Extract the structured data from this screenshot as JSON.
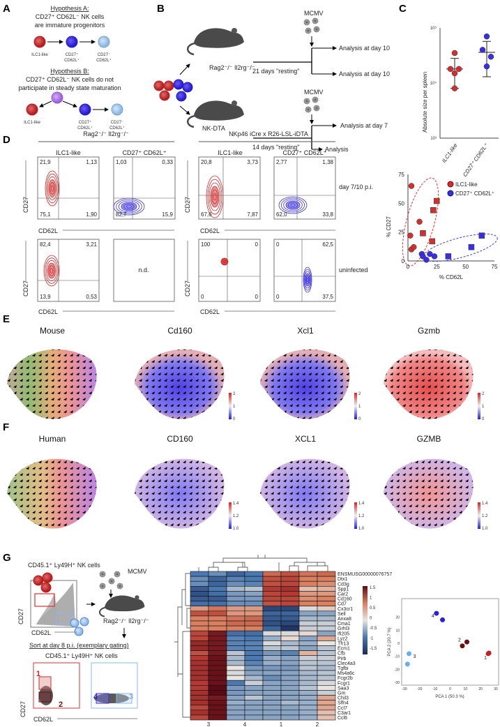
{
  "panels": {
    "a": "A",
    "b": "B",
    "c": "C",
    "d": "D",
    "e": "E",
    "f": "F",
    "g": "G"
  },
  "panel_a": {
    "hyp_a_title": "Hypothesis A:",
    "hyp_a_line1": "CD27⁺ CD62L⁻ NK cells",
    "hyp_a_line2": "are immature progenitors",
    "hyp_b_title": "Hypothesis B:",
    "hyp_b_line1": "CD27⁺ CD62L⁻ NK cells do not",
    "hyp_b_line2": "participate in steady state maturation",
    "cell_ilc1": "ILC1-like",
    "cell_cd27_l1": "CD27⁺",
    "cell_cd27_l2": "CD62L⁺",
    "cell_cd27neg_l1": "CD27⁻",
    "cell_cd27neg_l2": "CD62L⁺"
  },
  "panel_b": {
    "mcmv": "MCMV",
    "mouse1": "Rag2⁻/⁻ Il2rg⁻/⁻",
    "mouse2": "NK-DTA",
    "rest1": "21 days \"resting\"",
    "rest2": "14 days \"resting\"",
    "out1": "Analysis at day 10",
    "out2": "Analysis at day 10",
    "out3": "Analysis at day 7",
    "out4": "Analysis"
  },
  "panel_d": {
    "group1": "Rag2⁻/⁻ Il2rg⁻/⁻",
    "group2": "NKp46 iCre x R26-LSL-iDTA",
    "col_ilc1": "ILC1-like",
    "col_cd27": "CD27⁺ CD62L⁺",
    "row1": "day 7/10 p.i.",
    "row2": "uninfected",
    "ylabel": "CD27",
    "xlabel": "CD62L",
    "nd": "n.d.",
    "quadrants": [
      [
        "21,9",
        "1,13",
        "75,1",
        "1,90"
      ],
      [
        "1,03",
        "0,33",
        "82,7",
        "15,9"
      ],
      [
        "20,8",
        "3,73",
        "67,6",
        "7,87"
      ],
      [
        "2,77",
        "1,38",
        "62,0",
        "33,8"
      ],
      [
        "82,4",
        "3,21",
        "13,9",
        "0,53"
      ],
      [
        "100",
        "0",
        "0",
        "0"
      ],
      [
        "0",
        "62,5",
        "0",
        "37,5"
      ]
    ]
  },
  "panel_e": {
    "titles": [
      "Mouse",
      "Cd160",
      "Xcl1",
      "Gzmb"
    ],
    "scale": [
      "2",
      "1",
      "0"
    ]
  },
  "panel_f": {
    "titles": [
      "Human",
      "CD160",
      "XCL1",
      "GZMB"
    ],
    "scale": [
      "1.4",
      "1.2",
      "1.0"
    ]
  },
  "panel_g": {
    "title": "CD45.1⁺ Ly49H⁺ NK cells",
    "mcmv": "MCMV",
    "mouse": "Rag2⁻/⁻ Il2rg⁻/⁻",
    "sort": "Sort at day 8 p.i. (exemplary gating)",
    "title2": "CD45.1⁺ Ly49H⁺ NK cells",
    "ylabel": "CD27",
    "xlabel": "CD62L",
    "gates": [
      "1",
      "2",
      "4",
      "3"
    ]
  },
  "colors": {
    "red": "#d03030",
    "blue": "#3a2ee0",
    "lightblue": "#a8c8f0",
    "purple": "#b57be8",
    "darkred": "#7a1010"
  },
  "chart_data": [
    {
      "type": "scatter",
      "id": "c",
      "ylabel": "Absolute size per spleen",
      "yscale": "log",
      "ylim": [
        1000,
        100000
      ],
      "yticks": [
        "10³",
        "10⁴",
        "10⁵"
      ],
      "categories": [
        "ILC1-like",
        "CD27⁺ CD62L⁺"
      ],
      "series": [
        {
          "name": "ILC1-like",
          "values": [
            35000,
            18000,
            18000,
            15000,
            8000
          ],
          "mean": 18000,
          "sd": [
            8000,
            28000
          ]
        },
        {
          "name": "CD27⁺ CD62L⁺",
          "values": [
            70000,
            40000,
            30000,
            20000
          ],
          "mean": 36000,
          "sd": [
            13000,
            57000
          ]
        }
      ]
    },
    {
      "type": "scatter",
      "id": "d",
      "xlabel": "% CD62L",
      "ylabel": "% CD27",
      "xlim": [
        0,
        75
      ],
      "ylim": [
        0,
        75
      ],
      "xticks": [
        "0",
        "25",
        "50",
        "75"
      ],
      "yticks": [
        "0",
        "25",
        "50",
        "75"
      ],
      "legend": [
        "ILC1-like",
        "CD27⁺ CD62L⁺"
      ],
      "legend_position": "top-right",
      "series": [
        {
          "name": "ILC1-like",
          "marker": "circle",
          "points": [
            [
              2,
              22
            ],
            [
              3,
              10
            ],
            [
              5,
              12
            ],
            [
              3,
              65
            ],
            [
              10,
              34
            ]
          ]
        },
        {
          "name": "ILC1-like",
          "marker": "square",
          "points": [
            [
              13,
              24
            ],
            [
              22,
              44
            ],
            [
              25,
              52
            ],
            [
              21,
              17
            ]
          ]
        },
        {
          "name": "CD27⁺ CD62L⁺",
          "marker": "circle",
          "points": [
            [
              12,
              6
            ],
            [
              13,
              4
            ],
            [
              16,
              1
            ],
            [
              19,
              6
            ],
            [
              23,
              4
            ]
          ]
        },
        {
          "name": "CD27⁺ CD62L⁺",
          "marker": "square",
          "points": [
            [
              35,
              4
            ],
            [
              55,
              12
            ],
            [
              64,
              22
            ]
          ]
        }
      ]
    },
    {
      "type": "heatmap",
      "id": "g-heatmap",
      "columns": [
        "3",
        "4",
        "1",
        "2"
      ],
      "colorbar_ticks": [
        "1.5",
        "1",
        "0.5",
        "0",
        "-0.5",
        "-1",
        "-1.5"
      ],
      "rows": [
        "ENSMUSG00000076757",
        "Dtx1",
        "Cd3g",
        "Spp1",
        "Car2",
        "Cd160",
        "Cd7",
        "Cx3cr1",
        "Sell",
        "Anxa8",
        "Cma1",
        "Grhl3",
        "Ifi205",
        "Lyz2",
        "Tfr13",
        "Ecm1",
        "Cfb",
        "Pirb",
        "Clec4a3",
        "Tgfbi",
        "Ms4a6c",
        "Fcgr2b",
        "Fcgr1",
        "Saa3",
        "Gm",
        "Chil3",
        "Slfn4",
        "Ccl7",
        "C3ar1",
        "Ccl6"
      ],
      "values": [
        [
          -1,
          -0.8,
          -1.2,
          -1,
          1,
          1.2,
          0.9,
          1
        ],
        [
          -0.8,
          -1.2,
          -0.9,
          -1,
          1.2,
          1.3,
          0.8,
          0.8
        ],
        [
          -0.8,
          -1.2,
          -0.8,
          -0.9,
          1.2,
          1.3,
          0.8,
          0.7
        ],
        [
          -1.3,
          -1,
          -0.4,
          -0.3,
          1.4,
          1.5,
          0.3,
          0.4
        ],
        [
          -1.4,
          -1.1,
          -0.7,
          -0.6,
          1.3,
          1.4,
          0.6,
          0.6
        ],
        [
          -1.3,
          -1.3,
          -0.7,
          -0.7,
          1.3,
          1.3,
          0.7,
          0.8
        ],
        [
          -1.1,
          -1.1,
          -0.8,
          -0.8,
          1.2,
          1.3,
          0.8,
          0.8
        ],
        [
          0.6,
          0.9,
          0.6,
          0.6,
          -1.5,
          -1.5,
          -0.1,
          0.2
        ],
        [
          1.2,
          1.2,
          0.6,
          0.6,
          -1.2,
          -1.2,
          -0.6,
          -0.6
        ],
        [
          0.8,
          0.8,
          0.9,
          1,
          -1.3,
          -1.3,
          -0.4,
          -0.4
        ],
        [
          0.8,
          0.8,
          1,
          1,
          -1.4,
          -1.5,
          -0.2,
          -0.2
        ],
        [
          0.8,
          0.8,
          0.8,
          0.8,
          -1.2,
          -1.7,
          -0.2,
          -0.2
        ],
        [
          1.3,
          1.8,
          -1.1,
          -1.1,
          -0.1,
          -0.1,
          0.1,
          -0.6
        ],
        [
          1.3,
          1.8,
          -0.9,
          -1,
          -0.5,
          0.1,
          -0.6,
          0.5
        ],
        [
          1.6,
          1.8,
          -0.9,
          -0.9,
          -0.1,
          -0.4,
          -0.5,
          0
        ],
        [
          1.6,
          1.8,
          -0.9,
          -0.9,
          -0.3,
          -0.3,
          -0.6,
          -0.3
        ],
        [
          1.2,
          1.8,
          -0.3,
          -1,
          -0.7,
          -0.9,
          0.4,
          -0.3
        ],
        [
          1.4,
          1.9,
          -0.4,
          -1,
          -0.5,
          -0.6,
          -0.2,
          -0.2
        ],
        [
          1.5,
          1.9,
          -0.4,
          -0.9,
          -0.5,
          -0.6,
          -0.3,
          -0.3
        ],
        [
          1.5,
          1.9,
          0,
          -0.7,
          -0.7,
          -0.7,
          -0.3,
          -0.4
        ],
        [
          1.5,
          1.9,
          -0.1,
          -0.6,
          -0.6,
          -0.6,
          -0.4,
          -0.3
        ],
        [
          1.5,
          1.9,
          0,
          -0.4,
          -0.8,
          -0.6,
          -0.4,
          -0.3
        ],
        [
          1.4,
          1.9,
          -1,
          -0.2,
          -0.6,
          -0.6,
          -0.4,
          -0.1
        ],
        [
          1.4,
          2,
          -0.7,
          -0.6,
          -0.6,
          -0.6,
          -0.3,
          0
        ],
        [
          1.5,
          2,
          -0.7,
          -0.6,
          -0.6,
          -0.6,
          -0.5,
          -0.2
        ],
        [
          1.5,
          1.8,
          -0.6,
          -0.3,
          -0.6,
          -0.6,
          -0.5,
          0.5
        ],
        [
          1.5,
          1.9,
          -0.5,
          -0.6,
          -0.6,
          -0.4,
          -0.5,
          0.5
        ],
        [
          1.3,
          1.9,
          -0.6,
          -0.6,
          -0.6,
          -0.6,
          -0.5,
          0.5
        ],
        [
          1.5,
          1.9,
          -0.6,
          -0.6,
          -0.6,
          -0.6,
          -0.5,
          0.3
        ],
        [
          1.3,
          1.9,
          -0.6,
          -0.6,
          -0.6,
          -0.6,
          -0.5,
          0.3
        ]
      ]
    },
    {
      "type": "scatter",
      "id": "g-pca",
      "xlabel": "PCA 1 (50.3 %)",
      "ylabel": "PCA 2 (20.7 %)",
      "xlim": [
        -30,
        30
      ],
      "ylim": [
        -30,
        30
      ],
      "xticks": [
        "-30",
        "-20",
        "-10",
        "0",
        "10",
        "20",
        "30"
      ],
      "yticks": [
        "20",
        "10",
        "0",
        "-10",
        "-20",
        "-30"
      ],
      "series": [
        {
          "name": "1",
          "color": "#c02020",
          "points": [
            [
              25,
              -8
            ],
            [
              25.5,
              -7.5
            ]
          ]
        },
        {
          "name": "2",
          "color": "#6a1010",
          "points": [
            [
              8,
              -2
            ],
            [
              11,
              1
            ]
          ]
        },
        {
          "name": "3",
          "color": "#6aaee8",
          "points": [
            [
              -27,
              -8
            ],
            [
              -28,
              -16
            ]
          ]
        },
        {
          "name": "4",
          "color": "#2a20d8",
          "points": [
            [
              -9,
              23
            ],
            [
              -5,
              18
            ]
          ]
        }
      ]
    }
  ]
}
